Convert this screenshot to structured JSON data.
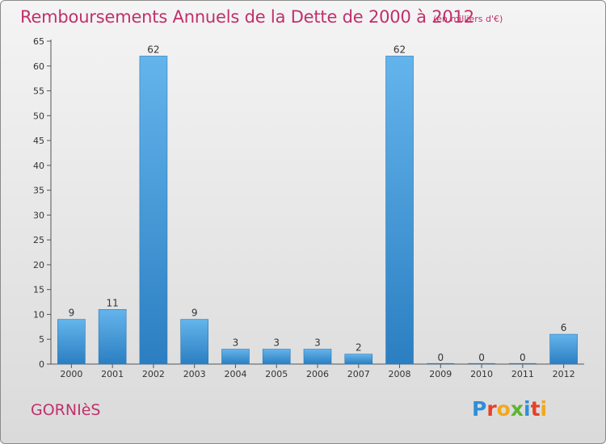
{
  "title": "Remboursements Annuels de la Dette de 2000 à 2012",
  "subtitle": "(en milliers d'€)",
  "commune": "GORNIèS",
  "logo": {
    "letters": [
      "P",
      "r",
      "o",
      "x",
      "i",
      "t",
      "i"
    ],
    "colors": [
      "#2f8fd8",
      "#e2432a",
      "#f2a81d",
      "#5db432",
      "#2f8fd8",
      "#e2432a",
      "#f2a81d"
    ]
  },
  "colors": {
    "bar_light": "#64b4ec",
    "bar_dark": "#2b7fc1",
    "title": "#c0306a",
    "text": "#333333"
  },
  "chart_data": {
    "type": "bar",
    "categories": [
      "2000",
      "2001",
      "2002",
      "2003",
      "2004",
      "2005",
      "2006",
      "2007",
      "2008",
      "2009",
      "2010",
      "2011",
      "2012"
    ],
    "values": [
      9,
      11,
      62,
      9,
      3,
      3,
      3,
      2,
      62,
      0,
      0,
      0,
      6
    ],
    "data_labels": [
      "9",
      "11",
      "62",
      "9",
      "3",
      "3",
      "3",
      "2",
      "62",
      "0",
      "0",
      "0",
      "6"
    ],
    "ylim": [
      0,
      65
    ],
    "yticks": [
      0,
      5,
      10,
      15,
      20,
      25,
      30,
      35,
      40,
      45,
      50,
      55,
      60,
      65
    ],
    "grid": false
  }
}
